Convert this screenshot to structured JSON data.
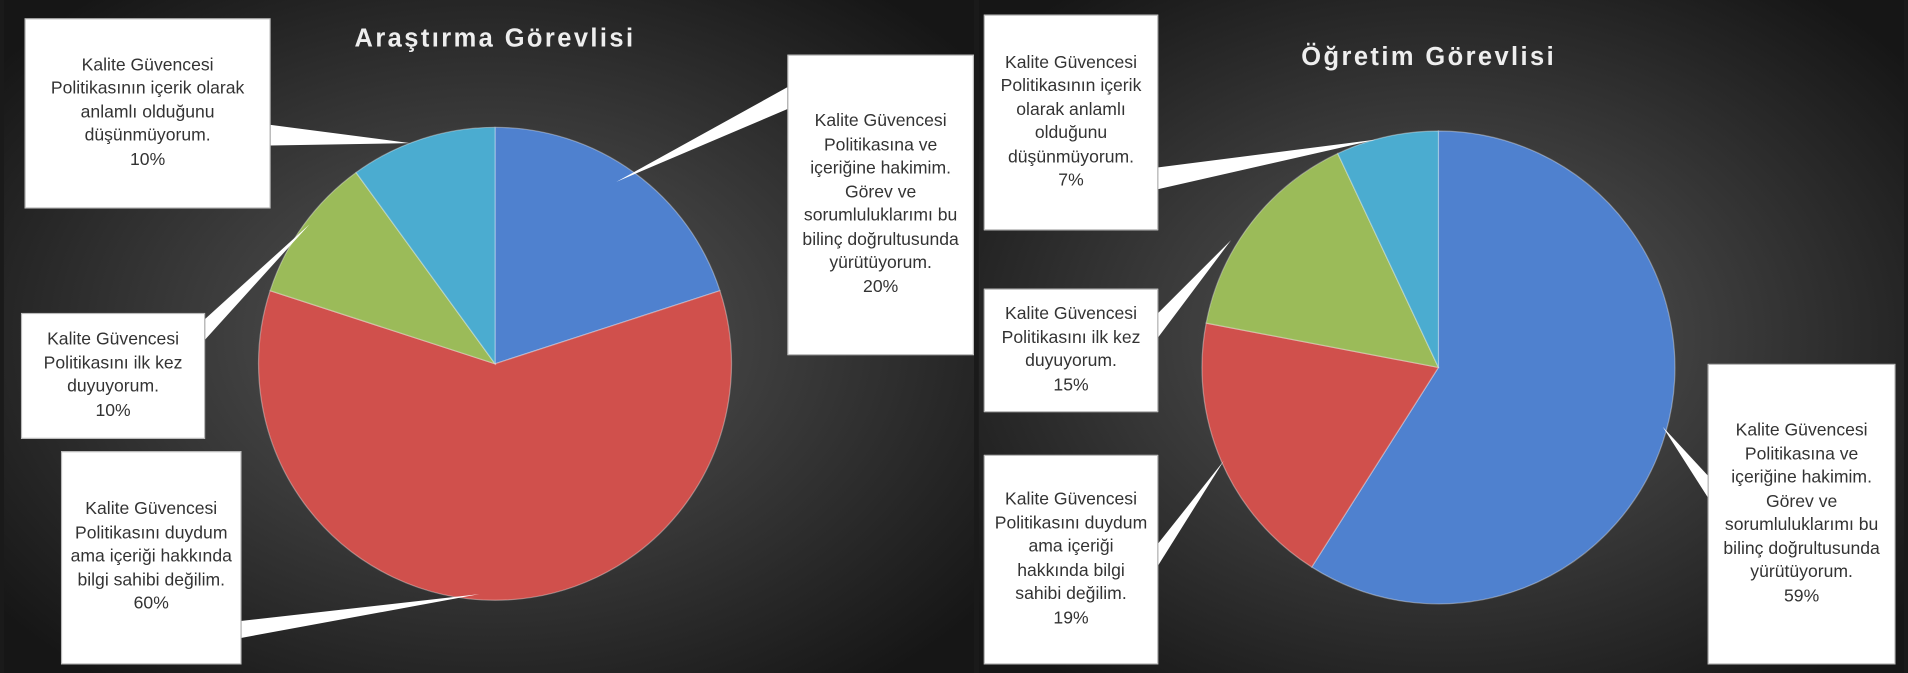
{
  "chart_data": [
    {
      "type": "pie",
      "title": "Araştırma Görevlisi",
      "categories": [
        "Kalite Güvencesi Politikasına ve içeriğine hakimim.  Görev ve sorumluluklarımı bu bilinç doğrultusunda yürütüyorum.",
        "Kalite Güvencesi Politikasını duydum ama içeriği hakkında bilgi sahibi değilim.",
        "Kalite Güvencesi Politikasını ilk kez duyuyorum.",
        "Kalite Güvencesi Politikasının içerik olarak anlamlı olduğunu düşünmüyorum."
      ],
      "values": [
        20,
        60,
        10,
        10
      ],
      "value_labels": [
        "20%",
        "60%",
        "10%",
        "10%"
      ],
      "colors": [
        "#4f81cf",
        "#d0504c",
        "#9bbb59",
        "#4bacd0"
      ]
    },
    {
      "type": "pie",
      "title": "Öğretim Görevlisi",
      "categories": [
        "Kalite Güvencesi Politikasına ve içeriğine hakimim.  Görev ve sorumluluklarımı bu bilinç doğrultusunda yürütüyorum.",
        "Kalite Güvencesi Politikasını duydum ama içeriği hakkında bilgi sahibi değilim.",
        "Kalite Güvencesi Politikasını ilk kez duyuyorum.",
        "Kalite Güvencesi Politikasının içerik olarak anlamlı olduğunu düşünmüyorum."
      ],
      "values": [
        59,
        19,
        15,
        7
      ],
      "value_labels": [
        "59%",
        "19%",
        "15%",
        "7%"
      ],
      "colors": [
        "#4f81cf",
        "#d0504c",
        "#9bbb59",
        "#4bacd0"
      ]
    }
  ]
}
